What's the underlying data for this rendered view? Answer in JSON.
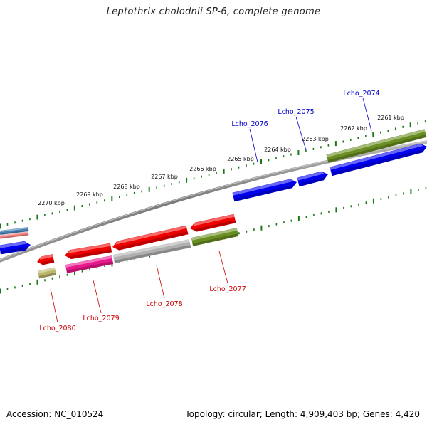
{
  "title": "Leptothrix cholodnii SP-6, complete genome",
  "footer": {
    "accession": "Accession: NC_010524",
    "info": "Topology: circular; Length: 4,909,403 bp; Genes: 4,420"
  },
  "tick_labels": [
    "2261 kbp",
    "2262 kbp",
    "2263 kbp",
    "2264 kbp",
    "2265 kbp",
    "2266 kbp",
    "2267 kbp",
    "2268 kbp",
    "2269 kbp",
    "2270 kbp"
  ],
  "colors": {
    "forward_cds": "#0000ee",
    "reverse_cds": "#ee0000",
    "cog_green": "#6b8e23",
    "cog_magenta": "#e8188c",
    "cog_gray": "#b0b0b0",
    "cog_khaki": "#bdb76b",
    "cog_steelblue": "#4682b4",
    "cog_salmon": "#f08080",
    "backbone": "#808080",
    "tick": "#1a7a1a",
    "label_forward": "#0000cc",
    "label_reverse": "#cc0000"
  },
  "gene_labels": {
    "forward": [
      "Lcho_2074",
      "Lcho_2075",
      "Lcho_2076"
    ],
    "reverse": [
      "Lcho_2077",
      "Lcho_2078",
      "Lcho_2079",
      "Lcho_2080"
    ]
  }
}
